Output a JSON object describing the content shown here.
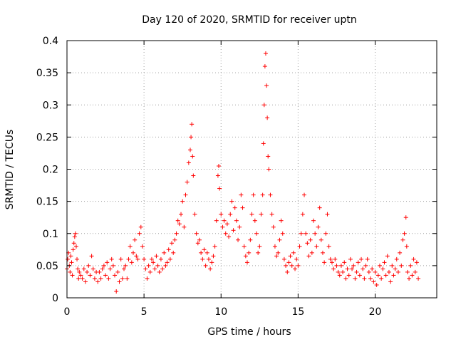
{
  "chart_data": {
    "type": "scatter",
    "title": "Day 120 of 2020, SRMTID for receiver uptn",
    "xlabel": "GPS time / hours",
    "ylabel": "SRMTID / TECUs",
    "xlim": [
      0,
      24
    ],
    "ylim": [
      0,
      0.4
    ],
    "xticks": [
      0,
      5,
      10,
      15,
      20
    ],
    "xtick_labels": [
      "0",
      "5",
      "10",
      "15",
      "20"
    ],
    "yticks": [
      0,
      0.05,
      0.1,
      0.15,
      0.2,
      0.25,
      0.3,
      0.35,
      0.4
    ],
    "ytick_labels": [
      "0",
      "0.05",
      "0.1",
      "0.15",
      "0.2",
      "0.25",
      "0.3",
      "0.35",
      "0.4"
    ],
    "grid": true,
    "marker": "plus",
    "marker_color": "#ff0000",
    "series": [
      {
        "name": "SRMTID",
        "points": [
          [
            0.0,
            0.045
          ],
          [
            0.05,
            0.06
          ],
          [
            0.1,
            0.07
          ],
          [
            0.15,
            0.05
          ],
          [
            0.2,
            0.04
          ],
          [
            0.25,
            0.065
          ],
          [
            0.3,
            0.055
          ],
          [
            0.35,
            0.035
          ],
          [
            0.4,
            0.075
          ],
          [
            0.45,
            0.085
          ],
          [
            0.5,
            0.095
          ],
          [
            0.55,
            0.1
          ],
          [
            0.6,
            0.08
          ],
          [
            0.65,
            0.06
          ],
          [
            0.7,
            0.045
          ],
          [
            0.75,
            0.03
          ],
          [
            0.8,
            0.04
          ],
          [
            0.9,
            0.035
          ],
          [
            1.0,
            0.03
          ],
          [
            1.1,
            0.045
          ],
          [
            1.2,
            0.025
          ],
          [
            1.3,
            0.04
          ],
          [
            1.4,
            0.05
          ],
          [
            1.5,
            0.035
          ],
          [
            1.6,
            0.065
          ],
          [
            1.7,
            0.045
          ],
          [
            1.8,
            0.03
          ],
          [
            1.9,
            0.04
          ],
          [
            2.0,
            0.025
          ],
          [
            2.1,
            0.04
          ],
          [
            2.2,
            0.03
          ],
          [
            2.3,
            0.045
          ],
          [
            2.4,
            0.05
          ],
          [
            2.5,
            0.035
          ],
          [
            2.6,
            0.055
          ],
          [
            2.7,
            0.03
          ],
          [
            2.8,
            0.045
          ],
          [
            2.9,
            0.06
          ],
          [
            3.0,
            0.05
          ],
          [
            3.1,
            0.035
          ],
          [
            3.2,
            0.01
          ],
          [
            3.3,
            0.04
          ],
          [
            3.4,
            0.025
          ],
          [
            3.5,
            0.06
          ],
          [
            3.6,
            0.03
          ],
          [
            3.7,
            0.045
          ],
          [
            3.8,
            0.05
          ],
          [
            3.9,
            0.03
          ],
          [
            4.0,
            0.06
          ],
          [
            4.1,
            0.08
          ],
          [
            4.2,
            0.055
          ],
          [
            4.3,
            0.07
          ],
          [
            4.4,
            0.09
          ],
          [
            4.5,
            0.065
          ],
          [
            4.6,
            0.06
          ],
          [
            4.7,
            0.1
          ],
          [
            4.8,
            0.11
          ],
          [
            4.9,
            0.08
          ],
          [
            5.0,
            0.06
          ],
          [
            5.1,
            0.045
          ],
          [
            5.2,
            0.03
          ],
          [
            5.3,
            0.05
          ],
          [
            5.4,
            0.04
          ],
          [
            5.5,
            0.06
          ],
          [
            5.6,
            0.055
          ],
          [
            5.7,
            0.045
          ],
          [
            5.8,
            0.065
          ],
          [
            5.9,
            0.05
          ],
          [
            6.0,
            0.04
          ],
          [
            6.1,
            0.06
          ],
          [
            6.2,
            0.045
          ],
          [
            6.3,
            0.07
          ],
          [
            6.4,
            0.05
          ],
          [
            6.5,
            0.055
          ],
          [
            6.6,
            0.075
          ],
          [
            6.7,
            0.06
          ],
          [
            6.8,
            0.085
          ],
          [
            6.9,
            0.07
          ],
          [
            7.0,
            0.09
          ],
          [
            7.1,
            0.1
          ],
          [
            7.2,
            0.12
          ],
          [
            7.3,
            0.115
          ],
          [
            7.4,
            0.13
          ],
          [
            7.5,
            0.15
          ],
          [
            7.6,
            0.11
          ],
          [
            7.7,
            0.16
          ],
          [
            7.8,
            0.18
          ],
          [
            7.9,
            0.21
          ],
          [
            8.0,
            0.23
          ],
          [
            8.05,
            0.25
          ],
          [
            8.1,
            0.27
          ],
          [
            8.15,
            0.22
          ],
          [
            8.2,
            0.19
          ],
          [
            8.3,
            0.13
          ],
          [
            8.4,
            0.1
          ],
          [
            8.5,
            0.085
          ],
          [
            8.6,
            0.09
          ],
          [
            8.7,
            0.07
          ],
          [
            8.8,
            0.06
          ],
          [
            8.9,
            0.075
          ],
          [
            9.0,
            0.05
          ],
          [
            9.1,
            0.07
          ],
          [
            9.2,
            0.06
          ],
          [
            9.3,
            0.045
          ],
          [
            9.4,
            0.055
          ],
          [
            9.5,
            0.065
          ],
          [
            9.6,
            0.08
          ],
          [
            9.7,
            0.12
          ],
          [
            9.8,
            0.19
          ],
          [
            9.85,
            0.205
          ],
          [
            9.9,
            0.17
          ],
          [
            10.0,
            0.13
          ],
          [
            10.1,
            0.11
          ],
          [
            10.2,
            0.12
          ],
          [
            10.3,
            0.1
          ],
          [
            10.4,
            0.115
          ],
          [
            10.5,
            0.095
          ],
          [
            10.6,
            0.13
          ],
          [
            10.7,
            0.15
          ],
          [
            10.8,
            0.105
          ],
          [
            10.9,
            0.14
          ],
          [
            11.0,
            0.12
          ],
          [
            11.1,
            0.09
          ],
          [
            11.2,
            0.11
          ],
          [
            11.3,
            0.16
          ],
          [
            11.4,
            0.14
          ],
          [
            11.5,
            0.08
          ],
          [
            11.6,
            0.065
          ],
          [
            11.7,
            0.055
          ],
          [
            11.8,
            0.07
          ],
          [
            11.9,
            0.09
          ],
          [
            12.0,
            0.13
          ],
          [
            12.1,
            0.16
          ],
          [
            12.2,
            0.12
          ],
          [
            12.3,
            0.1
          ],
          [
            12.4,
            0.07
          ],
          [
            12.5,
            0.08
          ],
          [
            12.6,
            0.13
          ],
          [
            12.7,
            0.16
          ],
          [
            12.75,
            0.24
          ],
          [
            12.8,
            0.3
          ],
          [
            12.85,
            0.36
          ],
          [
            12.9,
            0.38
          ],
          [
            12.95,
            0.33
          ],
          [
            13.0,
            0.28
          ],
          [
            13.05,
            0.22
          ],
          [
            13.1,
            0.2
          ],
          [
            13.2,
            0.16
          ],
          [
            13.3,
            0.13
          ],
          [
            13.4,
            0.11
          ],
          [
            13.5,
            0.08
          ],
          [
            13.6,
            0.065
          ],
          [
            13.7,
            0.07
          ],
          [
            13.8,
            0.09
          ],
          [
            13.9,
            0.12
          ],
          [
            14.0,
            0.1
          ],
          [
            14.1,
            0.06
          ],
          [
            14.2,
            0.05
          ],
          [
            14.3,
            0.04
          ],
          [
            14.4,
            0.055
          ],
          [
            14.5,
            0.065
          ],
          [
            14.6,
            0.05
          ],
          [
            14.7,
            0.07
          ],
          [
            14.8,
            0.045
          ],
          [
            14.9,
            0.06
          ],
          [
            15.0,
            0.05
          ],
          [
            15.1,
            0.08
          ],
          [
            15.2,
            0.1
          ],
          [
            15.3,
            0.13
          ],
          [
            15.4,
            0.16
          ],
          [
            15.5,
            0.1
          ],
          [
            15.6,
            0.085
          ],
          [
            15.7,
            0.065
          ],
          [
            15.8,
            0.09
          ],
          [
            15.9,
            0.07
          ],
          [
            16.0,
            0.12
          ],
          [
            16.1,
            0.1
          ],
          [
            16.2,
            0.08
          ],
          [
            16.3,
            0.11
          ],
          [
            16.4,
            0.14
          ],
          [
            16.5,
            0.09
          ],
          [
            16.6,
            0.07
          ],
          [
            16.7,
            0.055
          ],
          [
            16.8,
            0.1
          ],
          [
            16.9,
            0.13
          ],
          [
            17.0,
            0.08
          ],
          [
            17.1,
            0.06
          ],
          [
            17.2,
            0.055
          ],
          [
            17.3,
            0.045
          ],
          [
            17.4,
            0.06
          ],
          [
            17.5,
            0.05
          ],
          [
            17.6,
            0.04
          ],
          [
            17.7,
            0.035
          ],
          [
            17.8,
            0.05
          ],
          [
            17.9,
            0.04
          ],
          [
            18.0,
            0.055
          ],
          [
            18.1,
            0.03
          ],
          [
            18.2,
            0.045
          ],
          [
            18.3,
            0.035
          ],
          [
            18.4,
            0.06
          ],
          [
            18.5,
            0.045
          ],
          [
            18.6,
            0.05
          ],
          [
            18.7,
            0.03
          ],
          [
            18.8,
            0.04
          ],
          [
            18.9,
            0.055
          ],
          [
            19.0,
            0.035
          ],
          [
            19.1,
            0.06
          ],
          [
            19.2,
            0.045
          ],
          [
            19.3,
            0.03
          ],
          [
            19.4,
            0.05
          ],
          [
            19.5,
            0.06
          ],
          [
            19.6,
            0.04
          ],
          [
            19.7,
            0.03
          ],
          [
            19.8,
            0.045
          ],
          [
            19.9,
            0.025
          ],
          [
            20.0,
            0.04
          ],
          [
            20.1,
            0.02
          ],
          [
            20.2,
            0.035
          ],
          [
            20.3,
            0.05
          ],
          [
            20.4,
            0.03
          ],
          [
            20.5,
            0.045
          ],
          [
            20.6,
            0.055
          ],
          [
            20.7,
            0.035
          ],
          [
            20.8,
            0.065
          ],
          [
            20.9,
            0.04
          ],
          [
            21.0,
            0.025
          ],
          [
            21.1,
            0.05
          ],
          [
            21.2,
            0.035
          ],
          [
            21.3,
            0.045
          ],
          [
            21.4,
            0.06
          ],
          [
            21.5,
            0.04
          ],
          [
            21.6,
            0.07
          ],
          [
            21.7,
            0.05
          ],
          [
            21.8,
            0.09
          ],
          [
            21.9,
            0.1
          ],
          [
            22.0,
            0.125
          ],
          [
            22.05,
            0.08
          ],
          [
            22.1,
            0.04
          ],
          [
            22.2,
            0.03
          ],
          [
            22.3,
            0.05
          ],
          [
            22.4,
            0.035
          ],
          [
            22.5,
            0.06
          ],
          [
            22.6,
            0.04
          ],
          [
            22.7,
            0.055
          ],
          [
            22.8,
            0.03
          ]
        ]
      }
    ]
  }
}
